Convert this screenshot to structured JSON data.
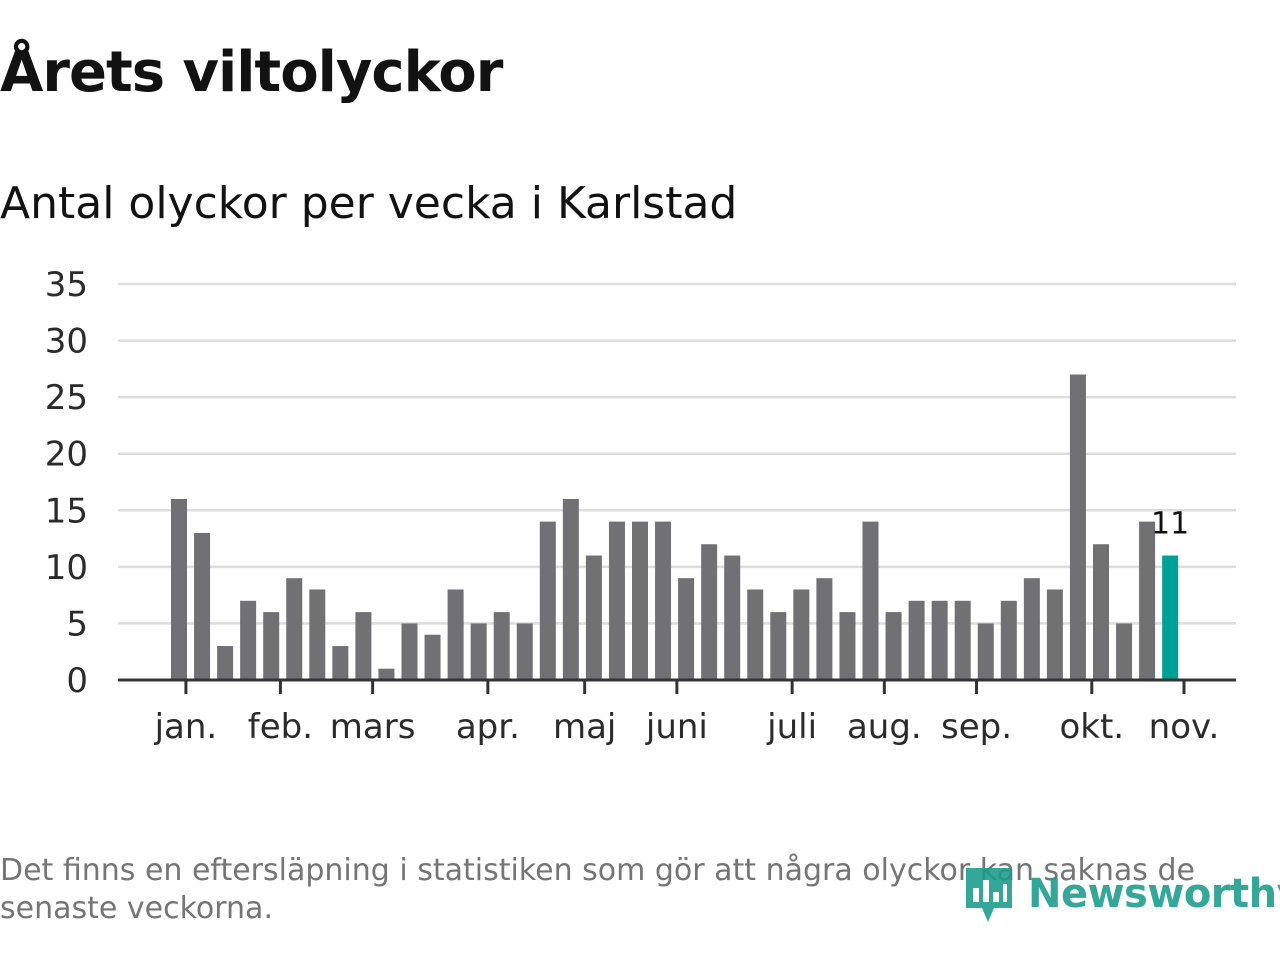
{
  "title": "Årets viltolyckor",
  "subtitle": "Antal olyckor per vecka i Karlstad",
  "footnote": "Det finns en eftersläpning i statistiken som gör att några olyckor kan saknas de senaste veckorna.",
  "logo": {
    "text": "Newsworthy",
    "icon": "newsworthy-logo-icon",
    "color": "#1a9c8a"
  },
  "colors": {
    "bar": "#717074",
    "highlight": "#00a096",
    "grid": "#dddddd",
    "axis": "#333333"
  },
  "chart_data": {
    "type": "bar",
    "values": [
      16,
      13,
      3,
      7,
      6,
      9,
      8,
      3,
      6,
      1,
      5,
      4,
      8,
      5,
      6,
      5,
      14,
      16,
      11,
      14,
      14,
      14,
      9,
      12,
      11,
      8,
      6,
      8,
      9,
      6,
      14,
      6,
      7,
      7,
      7,
      5,
      7,
      9,
      8,
      27,
      12,
      5,
      14,
      11
    ],
    "highlight_index": 43,
    "highlight_label": "11",
    "ylim": [
      0,
      35
    ],
    "yticks": [
      0,
      5,
      10,
      15,
      20,
      25,
      30,
      35
    ],
    "month_ticks": [
      {
        "label": "jan.",
        "week": 0.3
      },
      {
        "label": "feb.",
        "week": 4.4
      },
      {
        "label": "mars",
        "week": 8.4
      },
      {
        "label": "apr.",
        "week": 13.4
      },
      {
        "label": "maj",
        "week": 17.6
      },
      {
        "label": "juni",
        "week": 21.6
      },
      {
        "label": "juli",
        "week": 26.6
      },
      {
        "label": "aug.",
        "week": 30.6
      },
      {
        "label": "sep.",
        "week": 34.6
      },
      {
        "label": "okt.",
        "week": 39.6
      },
      {
        "label": "nov.",
        "week": 43.6
      }
    ],
    "grid": true,
    "legend": "none"
  }
}
